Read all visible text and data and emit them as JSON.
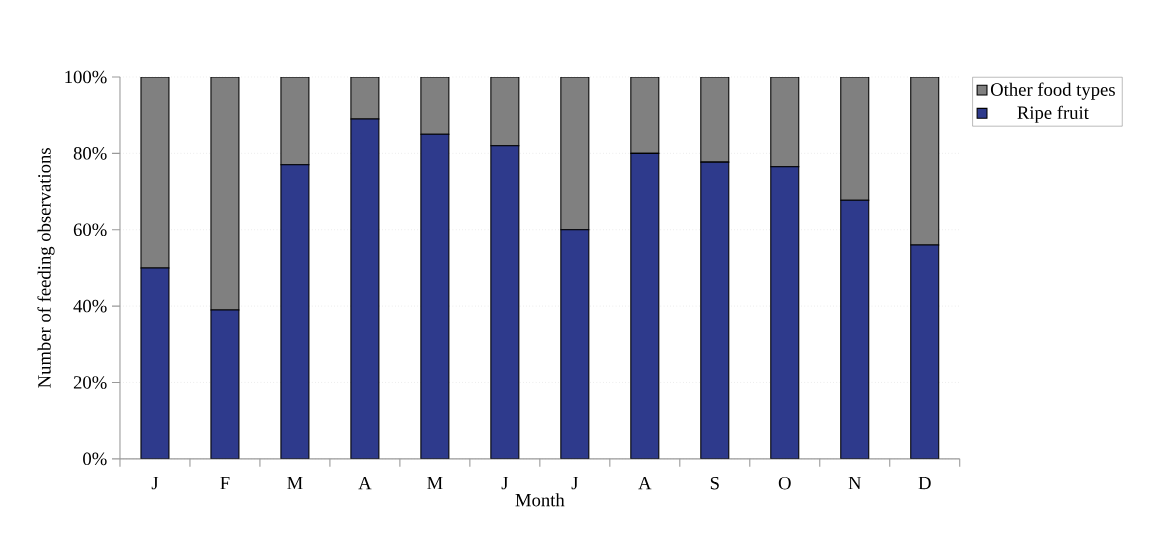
{
  "chart_data": {
    "type": "bar",
    "stacked": true,
    "xlabel": "Month",
    "ylabel": "Number of feeding observations",
    "categories": [
      "J",
      "F",
      "M",
      "A",
      "M",
      "J",
      "J",
      "A",
      "S",
      "O",
      "N",
      "D"
    ],
    "series": [
      {
        "name": "Ripe fruit",
        "color": "#2e3a8c",
        "values": [
          50,
          39,
          77,
          89,
          85,
          82,
          60,
          80,
          77.7,
          76.5,
          67.7,
          56
        ]
      },
      {
        "name": "Other food types",
        "color": "#808080",
        "values": [
          50,
          61,
          23,
          11,
          15,
          18,
          40,
          20,
          22.3,
          23.5,
          32.3,
          44
        ]
      }
    ],
    "ylim": [
      0,
      100
    ],
    "yticks": [
      {
        "value": 0,
        "label": "0%"
      },
      {
        "value": 20,
        "label": "20%"
      },
      {
        "value": 40,
        "label": "40%"
      },
      {
        "value": 60,
        "label": "60%"
      },
      {
        "value": 80,
        "label": "80%"
      },
      {
        "value": 100,
        "label": "100%"
      }
    ],
    "grid": "y",
    "legend": "top right"
  }
}
